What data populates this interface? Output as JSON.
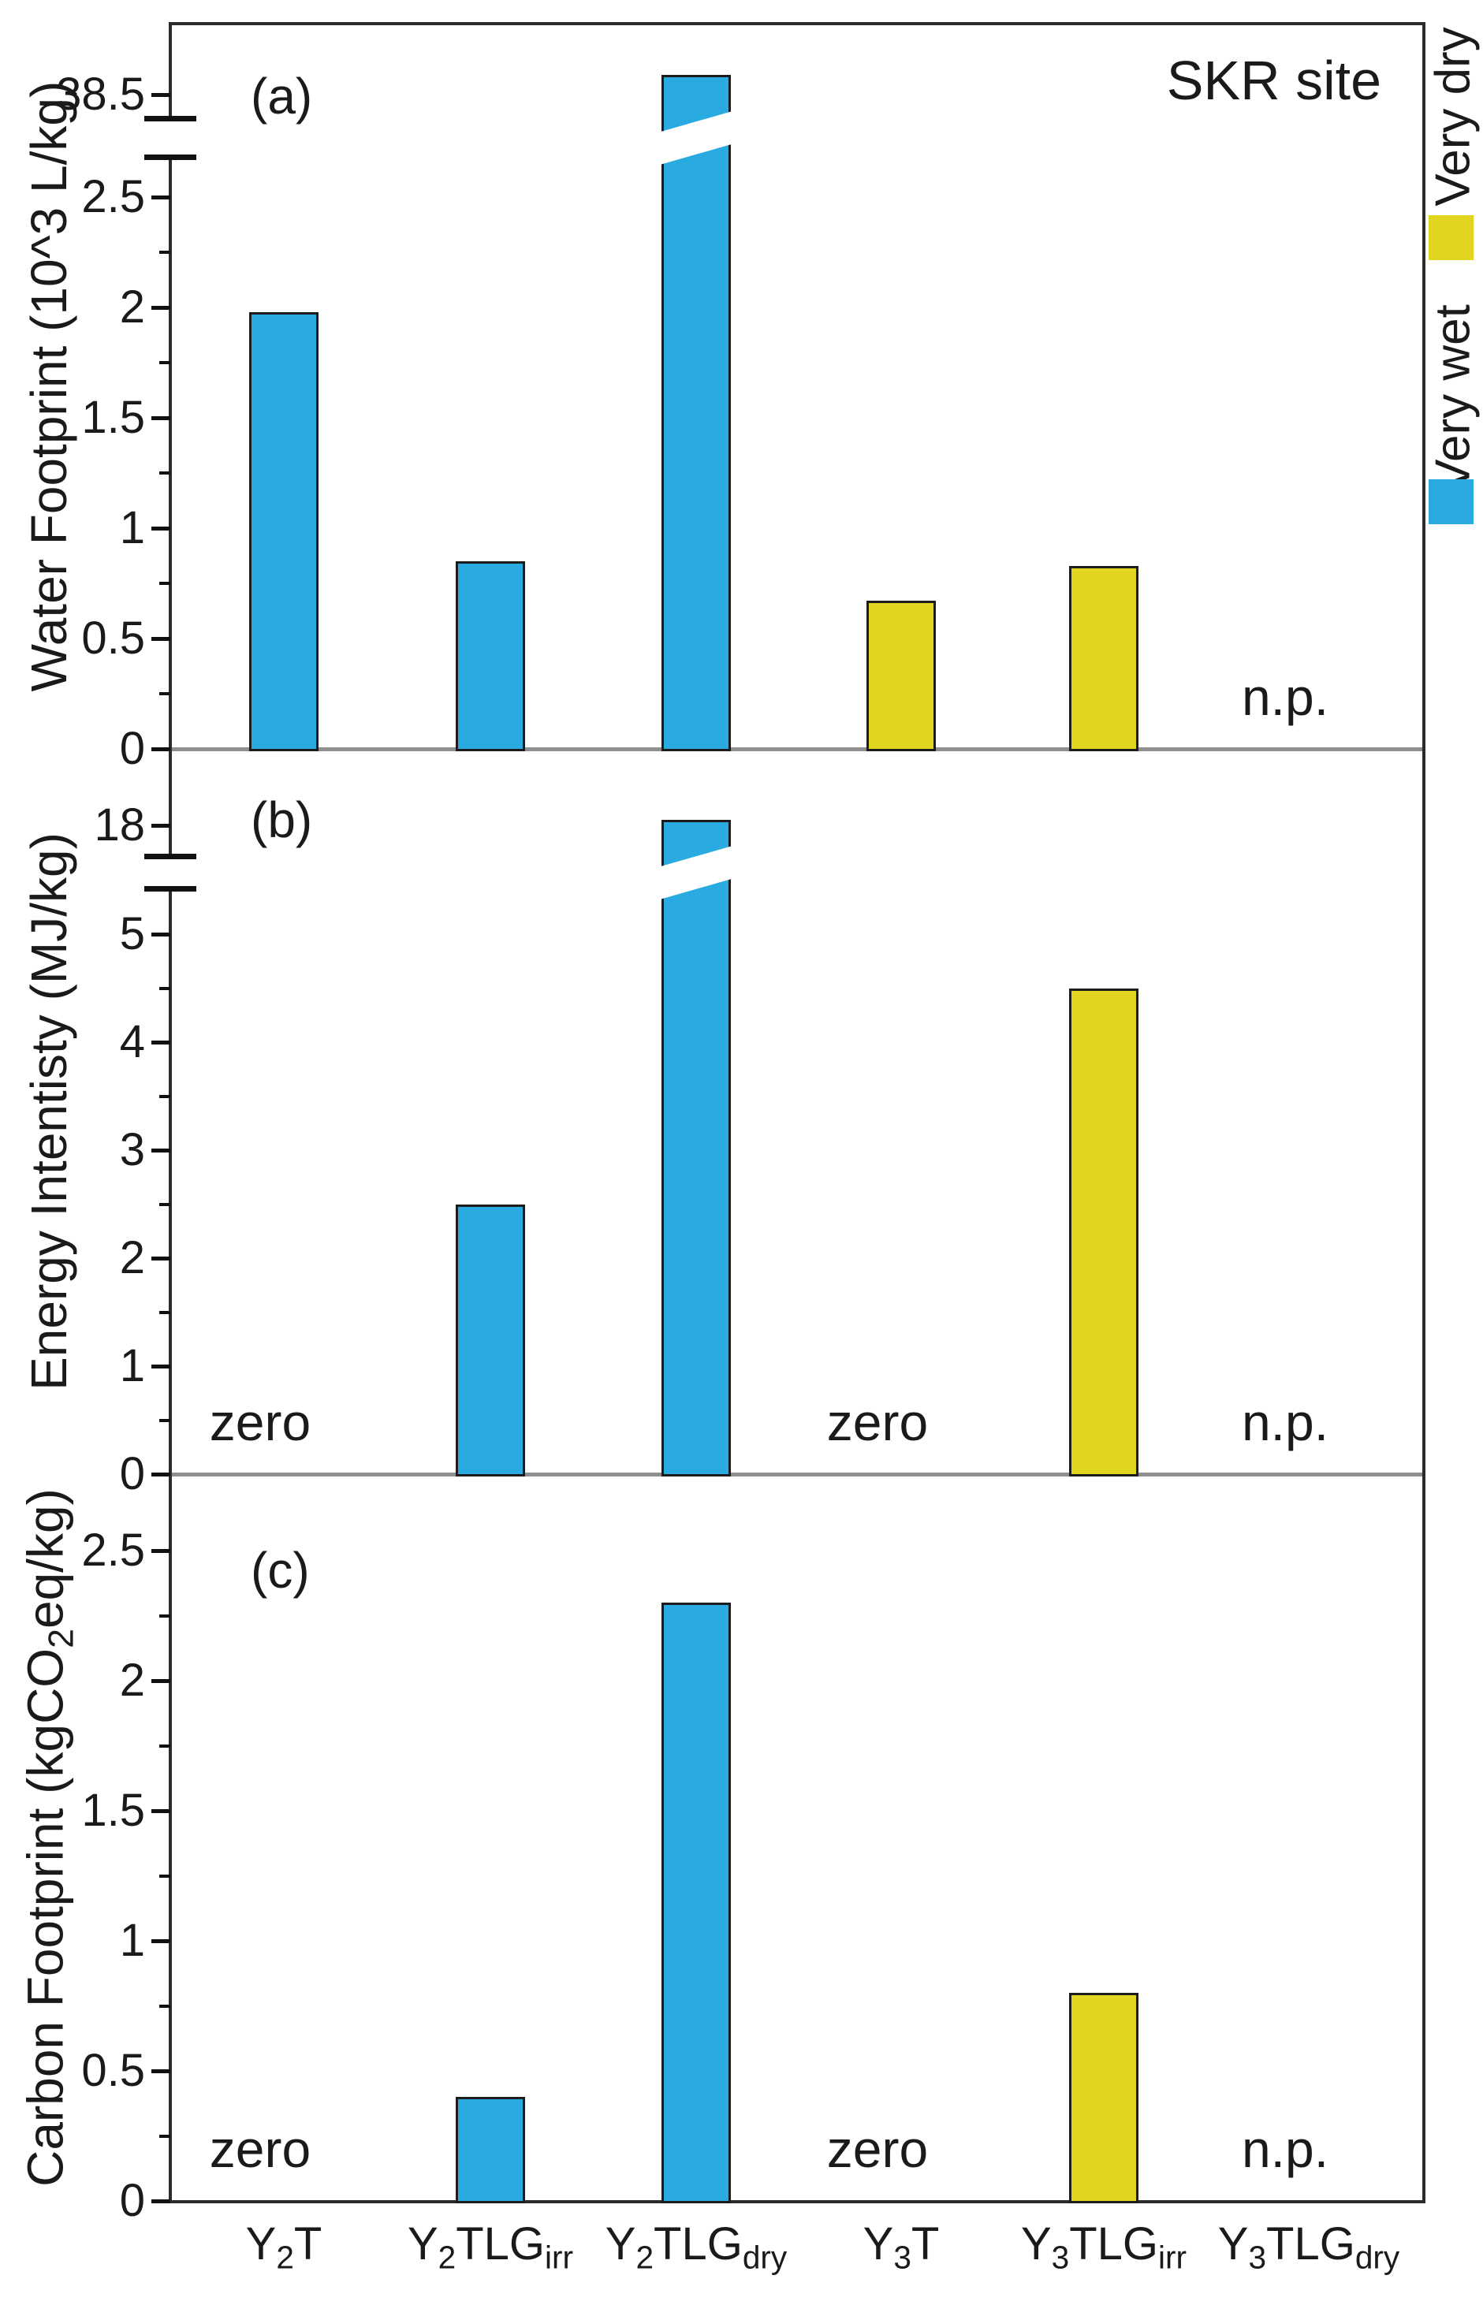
{
  "figure": {
    "site_label": "SKR site",
    "background": "#ffffff"
  },
  "colors": {
    "Very wet": "#29ABE2",
    "Very dry": "#E1D51F",
    "bar_outline": "#1c1c1c",
    "axis_dark": "#2b2b2b",
    "baseline_gray": "#8f8f8f",
    "text": "#1a1a1a"
  },
  "legend": {
    "position": "right-vertical-rotated",
    "entries": [
      {
        "label": "Very wet",
        "color": "#29ABE2",
        "swatch": "blue-square-icon"
      },
      {
        "label": "Very dry",
        "color": "#E1D51F",
        "swatch": "yellow-square-icon"
      }
    ]
  },
  "categories": [
    {
      "id": "Y2T",
      "segments": [
        {
          "t": "Y"
        },
        {
          "t": "2",
          "sub": 1
        },
        {
          "t": "T"
        }
      ]
    },
    {
      "id": "Y2TLGirr",
      "segments": [
        {
          "t": "Y"
        },
        {
          "t": "2",
          "sub": 1
        },
        {
          "t": "TLG"
        },
        {
          "t": "irr",
          "sub": 1
        }
      ]
    },
    {
      "id": "Y2TLGdry",
      "segments": [
        {
          "t": "Y"
        },
        {
          "t": "2",
          "sub": 1
        },
        {
          "t": "TLG"
        },
        {
          "t": "dry",
          "sub": 1
        }
      ]
    },
    {
      "id": "Y3T",
      "segments": [
        {
          "t": "Y"
        },
        {
          "t": "3",
          "sub": 1
        },
        {
          "t": "T"
        }
      ]
    },
    {
      "id": "Y3TLGirr",
      "segments": [
        {
          "t": "Y"
        },
        {
          "t": "3",
          "sub": 1
        },
        {
          "t": "TLG"
        },
        {
          "t": "irr",
          "sub": 1
        }
      ]
    },
    {
      "id": "Y3TLGdry",
      "segments": [
        {
          "t": "Y"
        },
        {
          "t": "3",
          "sub": 1
        },
        {
          "t": "TLG"
        },
        {
          "t": "dry",
          "sub": 1
        }
      ]
    }
  ],
  "chart_data": [
    {
      "type": "bar",
      "panel_label": "(a)",
      "corner_text": "SKR site",
      "ylabel": "Water Footprint (10^3 L/kg)",
      "ylabel_segments": [
        {
          "t": "Water Footprint (10^3 L/kg)"
        }
      ],
      "yticks": [
        0,
        0.5,
        1,
        1.5,
        2,
        2.5
      ],
      "minor_step": 0.25,
      "broken_axis": {
        "upper_tick_label": "38.5",
        "break_between": [
          2.7,
          38.5
        ]
      },
      "bars": [
        {
          "category": "Y2T",
          "value": 1.98,
          "series": "Very wet"
        },
        {
          "category": "Y2TLGirr",
          "value": 0.85,
          "series": "Very wet"
        },
        {
          "category": "Y2TLGdry",
          "value": 38.5,
          "series": "Very wet",
          "broken": true
        },
        {
          "category": "Y3T",
          "value": 0.67,
          "series": "Very dry"
        },
        {
          "category": "Y3TLGirr",
          "value": 0.83,
          "series": "Very dry"
        },
        {
          "category": "Y3TLGdry",
          "value": null,
          "note": "n.p."
        }
      ]
    },
    {
      "type": "bar",
      "panel_label": "(b)",
      "corner_text": "",
      "ylabel": "Energy Intentisty (MJ/kg)",
      "ylabel_segments": [
        {
          "t": "Energy Intentisty (MJ/kg)"
        }
      ],
      "yticks": [
        0,
        1,
        2,
        3,
        4,
        5
      ],
      "minor_step": 0.5,
      "broken_axis": {
        "upper_tick_label": "18",
        "break_between": [
          5.3,
          18
        ]
      },
      "bars": [
        {
          "category": "Y2T",
          "value": 0,
          "note": "zero"
        },
        {
          "category": "Y2TLGirr",
          "value": 2.5,
          "series": "Very wet"
        },
        {
          "category": "Y2TLGdry",
          "value": 18,
          "series": "Very wet",
          "broken": true
        },
        {
          "category": "Y3T",
          "value": 0,
          "note": "zero"
        },
        {
          "category": "Y3TLGirr",
          "value": 4.5,
          "series": "Very dry"
        },
        {
          "category": "Y3TLGdry",
          "value": null,
          "note": "n.p."
        }
      ]
    },
    {
      "type": "bar",
      "panel_label": "(c)",
      "corner_text": "",
      "ylabel": "Carbon Footprint (kgCO2eq/kg)",
      "ylabel_segments": [
        {
          "t": "Carbon Footprint (kgCO"
        },
        {
          "t": "2",
          "sub": 1
        },
        {
          "t": "eq/kg)"
        }
      ],
      "yticks": [
        0,
        0.5,
        1,
        1.5,
        2,
        2.5
      ],
      "minor_step": 0.25,
      "broken_axis": null,
      "bars": [
        {
          "category": "Y2T",
          "value": 0,
          "note": "zero"
        },
        {
          "category": "Y2TLGirr",
          "value": 0.4,
          "series": "Very wet"
        },
        {
          "category": "Y2TLGdry",
          "value": 2.3,
          "series": "Very wet"
        },
        {
          "category": "Y3T",
          "value": 0,
          "note": "zero"
        },
        {
          "category": "Y3TLGirr",
          "value": 0.8,
          "series": "Very dry"
        },
        {
          "category": "Y3TLGdry",
          "value": null,
          "note": "n.p."
        }
      ]
    }
  ]
}
